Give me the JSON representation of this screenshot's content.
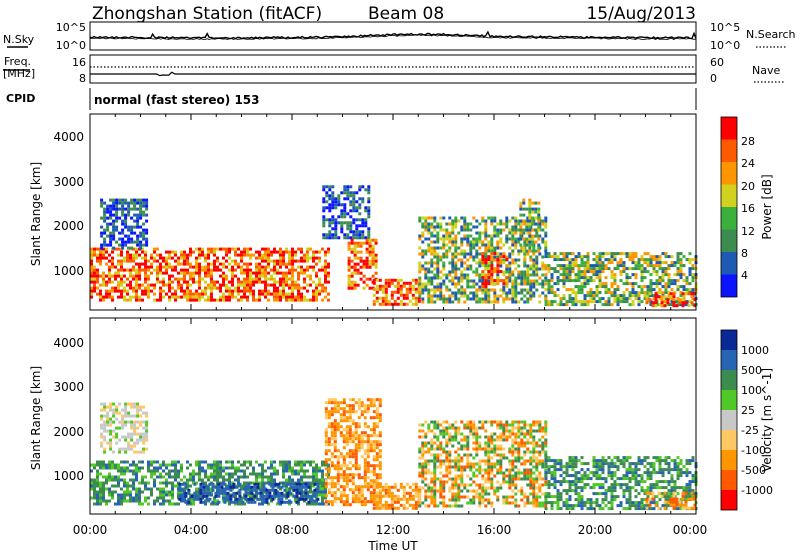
{
  "header": {
    "station": "Zhongshan Station (fitACF)",
    "beam": "Beam 08",
    "date": "15/Aug/2013"
  },
  "noise_panel": {
    "left_label": "N.Sky",
    "right_label": "N.Search",
    "left_ticks": [
      "10^5",
      "10^0"
    ],
    "right_ticks": [
      "10^5",
      "10^0"
    ]
  },
  "freq_panel": {
    "left_label_line1": "Freq.",
    "left_label_line2": "[MHz]",
    "right_label": "Nave",
    "left_ticks": [
      "16",
      "8"
    ],
    "right_ticks": [
      "60",
      "0"
    ]
  },
  "cpid": {
    "label": "CPID",
    "mode_text": "normal (fast stereo) 153"
  },
  "time_axis": {
    "label": "Time UT",
    "ticks": [
      "00:00",
      "04:00",
      "08:00",
      "12:00",
      "16:00",
      "20:00",
      "00:00"
    ]
  },
  "range_axis": {
    "label": "Slant Range [km]",
    "ticks": [
      "1000",
      "2000",
      "3000",
      "4000"
    ]
  },
  "colors": {
    "power": [
      "#0a14ff",
      "#1e5ab4",
      "#3c8c50",
      "#3cb03c",
      "#d2d21e",
      "#ff9600",
      "#ff5a00",
      "#ff0000"
    ],
    "velocity": [
      "#ff0000",
      "#ff5a00",
      "#ff9600",
      "#ffc864",
      "#c8c8c8",
      "#50c828",
      "#3c8c50",
      "#2864b4",
      "#0a2896"
    ]
  },
  "chart_data": [
    {
      "type": "heatmap",
      "title": "Power",
      "ylabel": "Slant Range [km]",
      "xlabel": "Time UT",
      "xlim": [
        "00:00",
        "24:00"
      ],
      "ylim": [
        200,
        4600
      ],
      "colorbar_label": "Power [dB]",
      "colorbar_ticks": [
        "4",
        "8",
        "12",
        "16",
        "20",
        "24",
        "28"
      ],
      "bands": [
        {
          "t_start": 0.0,
          "t_end": 9.5,
          "r_low": 400,
          "r_high": 1600,
          "level": "high"
        },
        {
          "t_start": 0.4,
          "t_end": 2.2,
          "r_low": 1600,
          "r_high": 2700,
          "level": "low"
        },
        {
          "t_start": 9.2,
          "t_end": 11.0,
          "r_low": 1800,
          "r_high": 3000,
          "level": "low"
        },
        {
          "t_start": 10.2,
          "t_end": 11.3,
          "r_low": 700,
          "r_high": 1800,
          "level": "high"
        },
        {
          "t_start": 11.2,
          "t_end": 13.0,
          "r_low": 300,
          "r_high": 900,
          "level": "high"
        },
        {
          "t_start": 13.0,
          "t_end": 18.0,
          "r_low": 400,
          "r_high": 2300,
          "level": "mid"
        },
        {
          "t_start": 15.5,
          "t_end": 16.5,
          "r_low": 700,
          "r_high": 1500,
          "level": "high"
        },
        {
          "t_start": 17.0,
          "t_end": 17.8,
          "r_low": 1500,
          "r_high": 2700,
          "level": "mid"
        },
        {
          "t_start": 18.0,
          "t_end": 24.0,
          "r_low": 300,
          "r_high": 1500,
          "level": "mid"
        },
        {
          "t_start": 22.0,
          "t_end": 24.0,
          "r_low": 300,
          "r_high": 600,
          "level": "high"
        }
      ]
    },
    {
      "type": "heatmap",
      "title": "Velocity",
      "ylabel": "Slant Range [km]",
      "xlabel": "Time UT",
      "xlim": [
        "00:00",
        "24:00"
      ],
      "ylim": [
        200,
        4600
      ],
      "colorbar_label": "Velocity [m s^-1]",
      "colorbar_ticks": [
        "-1000",
        "-500",
        "-100",
        "-25",
        "25",
        "100",
        "500",
        "1000"
      ],
      "bands": [
        {
          "t_start": 0.0,
          "t_end": 9.5,
          "r_low": 400,
          "r_high": 1400,
          "level": "positive"
        },
        {
          "t_start": 3.5,
          "t_end": 9.0,
          "r_low": 450,
          "r_high": 900,
          "level": "strong-positive"
        },
        {
          "t_start": 0.4,
          "t_end": 2.2,
          "r_low": 1600,
          "r_high": 2700,
          "level": "near-zero"
        },
        {
          "t_start": 9.3,
          "t_end": 11.5,
          "r_low": 400,
          "r_high": 2800,
          "level": "negative"
        },
        {
          "t_start": 11.2,
          "t_end": 13.0,
          "r_low": 300,
          "r_high": 900,
          "level": "negative"
        },
        {
          "t_start": 13.0,
          "t_end": 18.0,
          "r_low": 400,
          "r_high": 2300,
          "level": "mixed"
        },
        {
          "t_start": 18.0,
          "t_end": 24.0,
          "r_low": 300,
          "r_high": 1500,
          "level": "positive"
        },
        {
          "t_start": 22.0,
          "t_end": 24.0,
          "r_low": 300,
          "r_high": 700,
          "level": "negative"
        }
      ]
    }
  ]
}
